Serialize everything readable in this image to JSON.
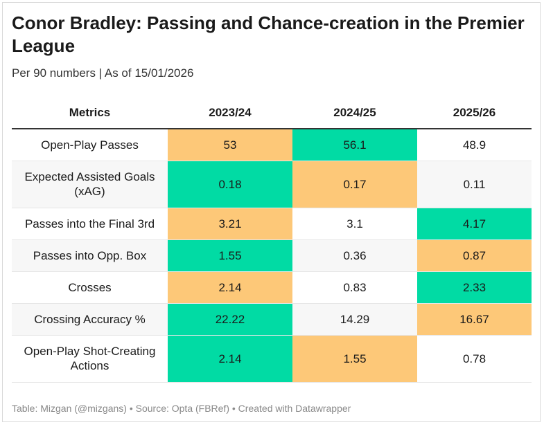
{
  "title": "Conor Bradley: Passing and Chance-creation in the Premier League",
  "subtitle": "Per 90 numbers | As of 15/01/2026",
  "footer": "Table: Mizgan (@mizgans) • Source: Opta (FBRef) • Created with Datawrapper",
  "colors": {
    "high": "#01dba4",
    "mid": "#fdc878",
    "low": "#ffffff"
  },
  "chart_data": {
    "type": "table",
    "title": "Conor Bradley: Passing and Chance-creation in the Premier League",
    "subtitle": "Per 90 numbers | As of 15/01/2026",
    "columns": [
      "Metrics",
      "2023/24",
      "2024/25",
      "2025/26"
    ],
    "rows": [
      {
        "metric": "Open-Play Passes",
        "values": [
          "53",
          "56.1",
          "48.9"
        ],
        "highlight": [
          "mid",
          "high",
          "low"
        ]
      },
      {
        "metric": "Expected Assisted Goals (xAG)",
        "values": [
          "0.18",
          "0.17",
          "0.11"
        ],
        "highlight": [
          "high",
          "mid",
          "low"
        ]
      },
      {
        "metric": "Passes into the Final 3rd",
        "values": [
          "3.21",
          "3.1",
          "4.17"
        ],
        "highlight": [
          "mid",
          "low",
          "high"
        ]
      },
      {
        "metric": "Passes into Opp. Box",
        "values": [
          "1.55",
          "0.36",
          "0.87"
        ],
        "highlight": [
          "high",
          "low",
          "mid"
        ]
      },
      {
        "metric": "Crosses",
        "values": [
          "2.14",
          "0.83",
          "2.33"
        ],
        "highlight": [
          "mid",
          "low",
          "high"
        ]
      },
      {
        "metric": "Crossing Accuracy %",
        "values": [
          "22.22",
          "14.29",
          "16.67"
        ],
        "highlight": [
          "high",
          "low",
          "mid"
        ]
      },
      {
        "metric": "Open-Play Shot-Creating Actions",
        "values": [
          "2.14",
          "1.55",
          "0.78"
        ],
        "highlight": [
          "high",
          "mid",
          "low"
        ]
      }
    ]
  }
}
